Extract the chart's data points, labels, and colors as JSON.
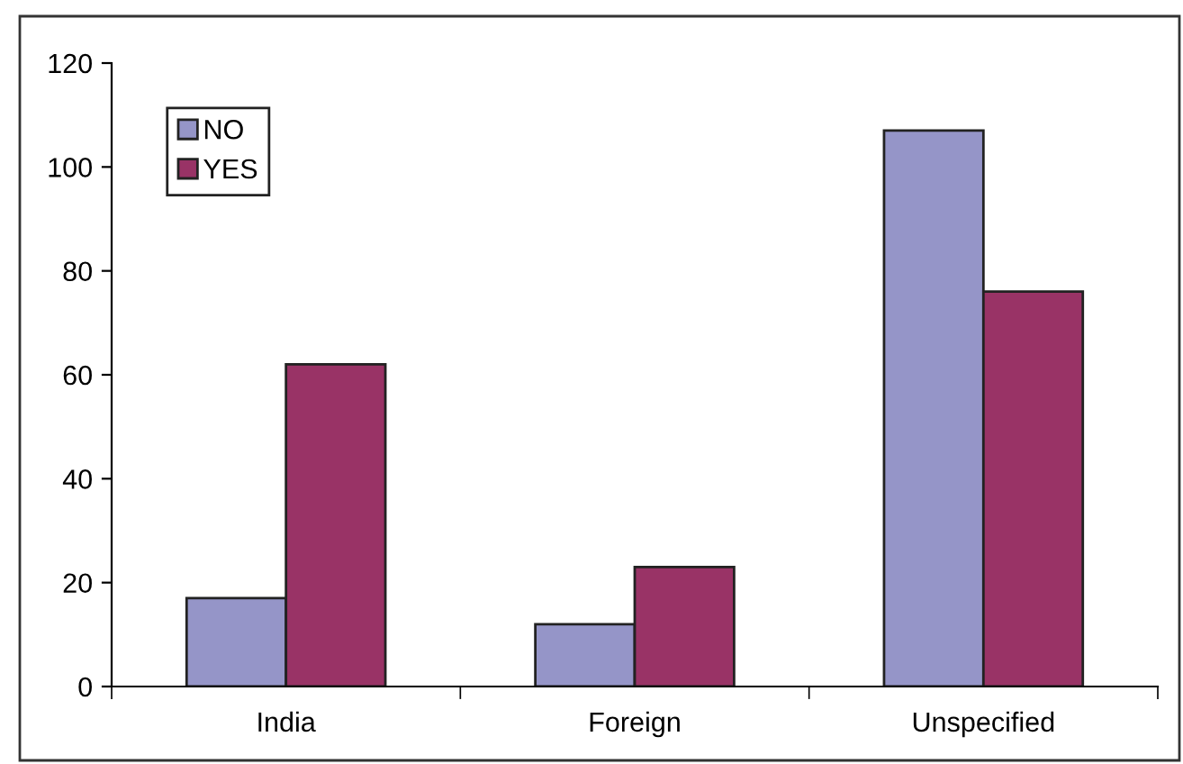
{
  "chart_data": {
    "type": "bar",
    "categories": [
      "India",
      "Foreign",
      "Unspecified"
    ],
    "series": [
      {
        "name": "NO",
        "color": "#9595c8",
        "values": [
          17,
          12,
          107
        ]
      },
      {
        "name": "YES",
        "color": "#993366",
        "values": [
          62,
          23,
          76
        ]
      }
    ],
    "ylim": [
      0,
      120
    ],
    "yticks": [
      0,
      20,
      40,
      60,
      80,
      100,
      120
    ],
    "grid": false,
    "legend": "top left"
  }
}
